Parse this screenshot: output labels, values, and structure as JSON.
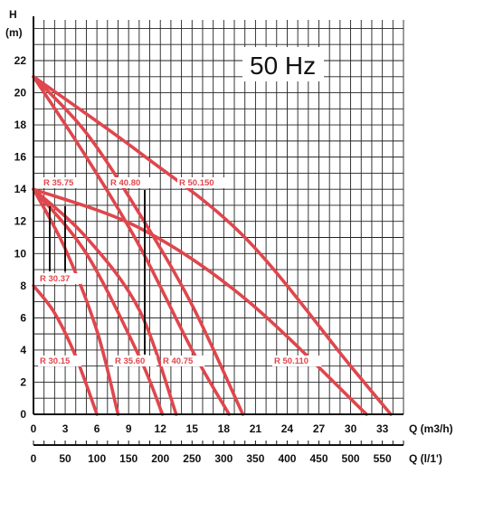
{
  "chart_data": {
    "type": "line",
    "title": "50 Hz",
    "ylabel": "H",
    "yunit": "(m)",
    "xlabel": "Q (m3/h)",
    "x2label": "Q (l/1')",
    "xlim": [
      0,
      34
    ],
    "ylim": [
      0,
      22
    ],
    "xticks": [
      "0",
      "3",
      "6",
      "9",
      "12",
      "15",
      "18",
      "21",
      "24",
      "27",
      "30",
      "33"
    ],
    "x2ticks": [
      "0",
      "50",
      "100",
      "150",
      "200",
      "250",
      "300",
      "350",
      "400",
      "450",
      "500",
      "550"
    ],
    "yticks": [
      "0",
      "2",
      "4",
      "6",
      "8",
      "10",
      "12",
      "14",
      "16",
      "18",
      "20",
      "22"
    ],
    "grid": true,
    "curve_color": "#e0464d",
    "series": [
      {
        "name": "R 30.15",
        "x": [
          0,
          2,
          4,
          6
        ],
        "y": [
          8,
          6.3,
          3.6,
          0
        ]
      },
      {
        "name": "R 30.37",
        "x": [
          0,
          3,
          6,
          8
        ],
        "y": [
          14,
          10.3,
          5.2,
          0
        ]
      },
      {
        "name": "R 35.60",
        "x": [
          0,
          5,
          10,
          12.2
        ],
        "y": [
          14,
          10,
          3.6,
          0
        ]
      },
      {
        "name": "R 40.75",
        "x": [
          0,
          5,
          10,
          13.5
        ],
        "y": [
          14,
          11,
          6.5,
          0
        ]
      },
      {
        "name": "R 35.75",
        "x": [
          0,
          5,
          10,
          15,
          18.5
        ],
        "y": [
          21,
          16,
          10.5,
          4,
          0
        ]
      },
      {
        "name": "R 40.80",
        "x": [
          0,
          5,
          10,
          15,
          19.8
        ],
        "y": [
          21,
          17.5,
          12.5,
          6.8,
          0
        ]
      },
      {
        "name": "R 50.110",
        "x": [
          0,
          10,
          20,
          31.5
        ],
        "y": [
          14,
          11.6,
          7.2,
          0
        ]
      },
      {
        "name": "R 50.150",
        "x": [
          0,
          10,
          20,
          30,
          33.8
        ],
        "y": [
          21,
          16.3,
          11,
          3,
          0
        ]
      }
    ],
    "labels": [
      {
        "text": "R 35.75"
      },
      {
        "text": "R 40.80"
      },
      {
        "text": "R 50.150"
      },
      {
        "text": "R 30.37"
      },
      {
        "text": "R 30.15"
      },
      {
        "text": "R 35.60"
      },
      {
        "text": "R 40.75"
      },
      {
        "text": "R 50.110"
      }
    ]
  }
}
